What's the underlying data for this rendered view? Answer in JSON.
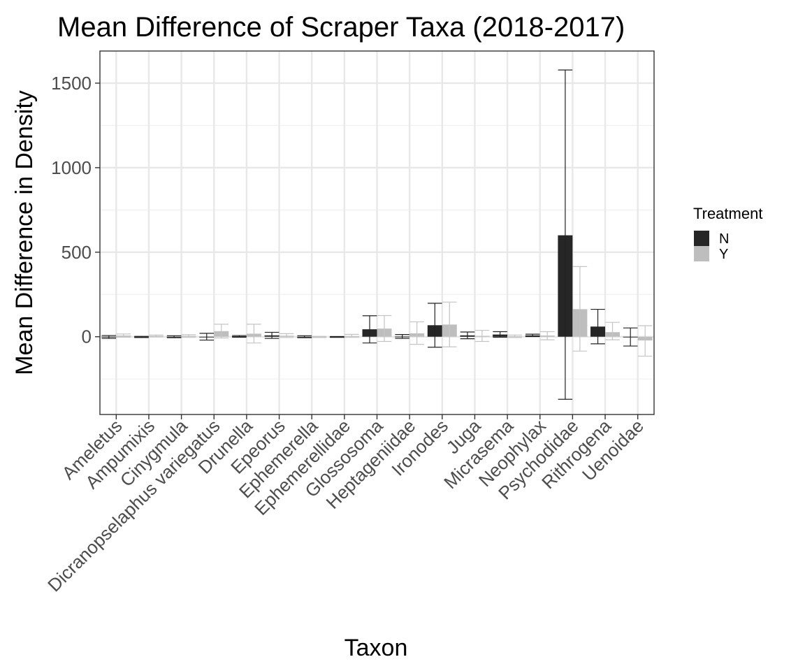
{
  "chart_data": {
    "type": "bar",
    "title": "Mean Difference of Scraper Taxa (2018-2017)",
    "xlabel": "Taxon",
    "ylabel": "Mean Difference in Density",
    "ylim": [
      -460,
      1690
    ],
    "yticks": [
      0,
      500,
      1000,
      1500
    ],
    "grid": true,
    "legend_position": "right",
    "legend_title": "Treatment",
    "categories": [
      "Ameletus",
      "Ampumixis",
      "Cinygmula",
      "Dicranopselaphus variegatus",
      "Drunella",
      "Epeorus",
      "Ephemerella",
      "Ephemerellidae",
      "Glossosoma",
      "Heptageniidae",
      "Ironodes",
      "Juga",
      "Micrasema",
      "Neophylax",
      "Psychodidae",
      "Rithrogena",
      "Uenoidae"
    ],
    "series": [
      {
        "name": "N",
        "color": "#262626",
        "values": [
          -2,
          -1,
          -1,
          -1,
          3,
          8,
          -1,
          -2,
          44,
          1,
          68,
          8,
          13,
          8,
          600,
          60,
          -1
        ],
        "err_low": [
          -10,
          -5,
          -6,
          -20,
          -3,
          -10,
          -6,
          -4,
          -37,
          -10,
          -62,
          -12,
          -3,
          1,
          -370,
          -42,
          -55
        ],
        "err_high": [
          7,
          2,
          6,
          20,
          7,
          26,
          6,
          1,
          124,
          13,
          198,
          28,
          30,
          15,
          1578,
          162,
          52
        ]
      },
      {
        "name": "Y",
        "color": "#bebebe",
        "values": [
          7,
          5,
          5,
          33,
          18,
          6,
          -1,
          4,
          48,
          20,
          72,
          5,
          2,
          7,
          163,
          27,
          -22
        ],
        "err_low": [
          -3,
          -1,
          -4,
          -8,
          -37,
          -5,
          -5,
          -4,
          -28,
          -45,
          -60,
          -28,
          -5,
          -18,
          -85,
          -18,
          -115
        ],
        "err_high": [
          16,
          10,
          12,
          74,
          74,
          18,
          2,
          14,
          125,
          88,
          205,
          38,
          10,
          30,
          415,
          85,
          65
        ]
      }
    ]
  }
}
